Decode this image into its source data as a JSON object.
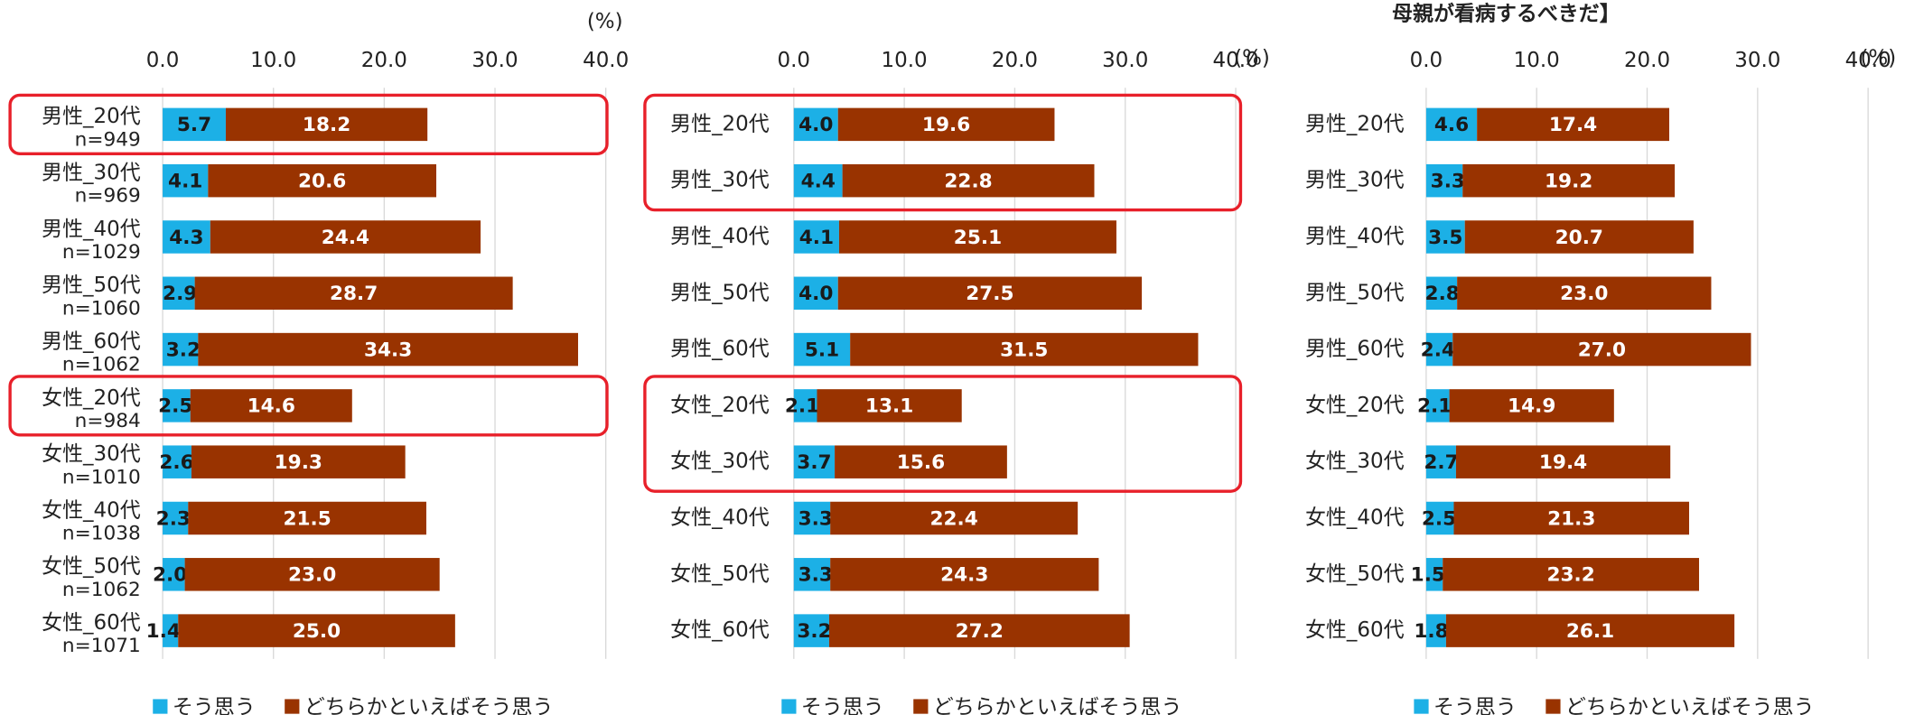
{
  "chart_data": [
    {
      "type": "stacked-bar-horizontal",
      "unit_label": "(%)",
      "categories": [
        "男性_20代",
        "男性_30代",
        "男性_40代",
        "男性_50代",
        "男性_60代",
        "女性_20代",
        "女性_30代",
        "女性_40代",
        "女性_50代",
        "女性_60代"
      ],
      "sample_sizes": [
        "n=949",
        "n=969",
        "n=1029",
        "n=1060",
        "n=1062",
        "n=984",
        "n=1010",
        "n=1038",
        "n=1062",
        "n=1071"
      ],
      "series": [
        {
          "name": "そう思う",
          "color": "#1cb0e6",
          "values": [
            5.7,
            4.1,
            4.3,
            2.9,
            3.2,
            2.5,
            2.6,
            2.3,
            2.0,
            1.4
          ],
          "value_labels": [
            "5.7",
            "4.1",
            "4.3",
            "2.9",
            "3.2",
            "2.5",
            "2.6",
            "2.3",
            "2.0",
            "1.4"
          ]
        },
        {
          "name": "どちらかといえばそう思う",
          "color": "#993300",
          "values": [
            18.2,
            20.6,
            24.4,
            28.7,
            34.3,
            14.6,
            19.3,
            21.5,
            23.0,
            25.0
          ],
          "value_labels": [
            "18.2",
            "20.6",
            "24.4",
            "28.7",
            "34.3",
            "14.6",
            "19.3",
            "21.5",
            "23.0",
            "25.0"
          ]
        }
      ],
      "xlim": [
        0,
        40
      ],
      "xticks": [
        {
          "value": 0,
          "label": "0.0"
        },
        {
          "value": 10,
          "label": "10.0"
        },
        {
          "value": 20,
          "label": "20.0"
        },
        {
          "value": 30,
          "label": "30.0"
        },
        {
          "value": 40,
          "label": "40.0"
        }
      ],
      "grid": true,
      "legend": "bottom"
    },
    {
      "type": "stacked-bar-horizontal",
      "unit_label": "(%)",
      "categories": [
        "男性_20代",
        "男性_30代",
        "男性_40代",
        "男性_50代",
        "男性_60代",
        "女性_20代",
        "女性_30代",
        "女性_40代",
        "女性_50代",
        "女性_60代"
      ],
      "series": [
        {
          "name": "そう思う",
          "color": "#1cb0e6",
          "values": [
            4.0,
            4.4,
            4.1,
            4.0,
            5.1,
            2.1,
            3.7,
            3.3,
            3.3,
            3.2
          ],
          "value_labels": [
            "4.0",
            "4.4",
            "4.1",
            "4.0",
            "5.1",
            "2.1",
            "3.7",
            "3.3",
            "3.3",
            "3.2"
          ]
        },
        {
          "name": "どちらかといえばそう思う",
          "color": "#993300",
          "values": [
            19.6,
            22.8,
            25.1,
            27.5,
            31.5,
            13.1,
            15.6,
            22.4,
            24.3,
            27.2
          ],
          "value_labels": [
            "19.6",
            "22.8",
            "25.1",
            "27.5",
            "31.5",
            "13.1",
            "15.6",
            "22.4",
            "24.3",
            "27.2"
          ]
        }
      ],
      "xlim": [
        0,
        40
      ],
      "xticks": [
        {
          "value": 0,
          "label": "0.0"
        },
        {
          "value": 10,
          "label": "10.0"
        },
        {
          "value": 20,
          "label": "20.0"
        },
        {
          "value": 30,
          "label": "30.0"
        },
        {
          "value": 40,
          "label": "40.0"
        }
      ],
      "grid": true,
      "legend": "bottom"
    },
    {
      "type": "stacked-bar-horizontal",
      "title": "母親が看病するべきだ】",
      "unit_label": "(%)",
      "categories": [
        "男性_20代",
        "男性_30代",
        "男性_40代",
        "男性_50代",
        "男性_60代",
        "女性_20代",
        "女性_30代",
        "女性_40代",
        "女性_50代",
        "女性_60代"
      ],
      "series": [
        {
          "name": "そう思う",
          "color": "#1cb0e6",
          "values": [
            4.6,
            3.3,
            3.5,
            2.8,
            2.4,
            2.1,
            2.7,
            2.5,
            1.5,
            1.8
          ],
          "value_labels": [
            "4.6",
            "3.3",
            "3.5",
            "2.8",
            "2.4",
            "2.1",
            "2.7",
            "2.5",
            "1.5",
            "1.8"
          ]
        },
        {
          "name": "どちらかといえばそう思う",
          "color": "#993300",
          "values": [
            17.4,
            19.2,
            20.7,
            23.0,
            27.0,
            14.9,
            19.4,
            21.3,
            23.2,
            26.1
          ],
          "value_labels": [
            "17.4",
            "19.2",
            "20.7",
            "23.0",
            "27.0",
            "14.9",
            "19.4",
            "21.3",
            "23.2",
            "26.1"
          ]
        }
      ],
      "xlim": [
        0,
        40
      ],
      "xticks": [
        {
          "value": 0,
          "label": "0.0"
        },
        {
          "value": 10,
          "label": "10.0"
        },
        {
          "value": 20,
          "label": "20.0"
        },
        {
          "value": 30,
          "label": "30.0"
        },
        {
          "value": 40,
          "label": "40.0"
        }
      ],
      "grid": true,
      "legend": "bottom"
    }
  ]
}
